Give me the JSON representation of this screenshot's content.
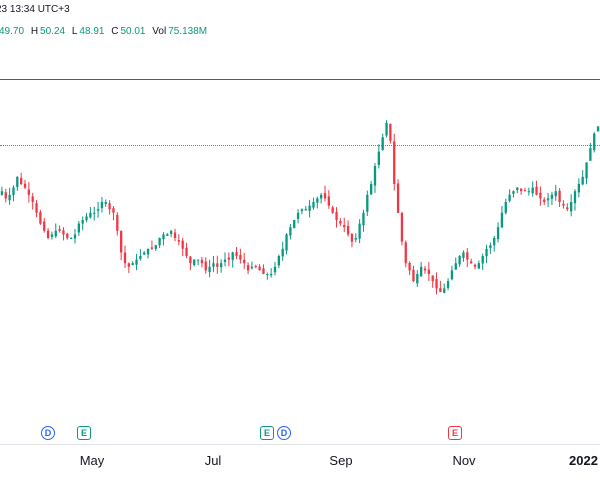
{
  "header": {
    "timestamp": "23 13:34 UTC+3"
  },
  "ohlc": {
    "open_label": "",
    "open_value": "49.70",
    "high_label": "H",
    "high_value": "50.24",
    "low_label": "L",
    "low_value": "48.91",
    "close_label": "C",
    "close_value": "50.01",
    "vol_label": "Vol",
    "vol_value": "75.138M"
  },
  "colors": {
    "up": "#089981",
    "down": "#f23645",
    "horizontal_line": "#9c27b0",
    "price_line": "#26a69a",
    "dividend": "#2962ff"
  },
  "events": [
    {
      "type": "dividend",
      "glyph": "D"
    },
    {
      "type": "earnings",
      "glyph": "E"
    },
    {
      "type": "earnings",
      "glyph": "E"
    },
    {
      "type": "dividend",
      "glyph": "D"
    },
    {
      "type": "earnings-red",
      "glyph": "E"
    }
  ],
  "time_axis": {
    "labels": [
      "May",
      "Jul",
      "Sep",
      "Nov",
      "2022"
    ]
  },
  "chart_data": {
    "type": "candlestick",
    "ylim": [
      0,
      100
    ],
    "closes": [
      58,
      56,
      57,
      59,
      62,
      60,
      59,
      57,
      55,
      52,
      49,
      47,
      45,
      46,
      47,
      47,
      46,
      45,
      45,
      46,
      49,
      50,
      51,
      52,
      52,
      53,
      55,
      55,
      53,
      52,
      47,
      41,
      38,
      37,
      38,
      39,
      40,
      41,
      42,
      42,
      43,
      45,
      46,
      46,
      47,
      45,
      44,
      42,
      40,
      38,
      39,
      39,
      38,
      36,
      37,
      38,
      37,
      38,
      39,
      39,
      41,
      40,
      39,
      38,
      36,
      37,
      37,
      36,
      35,
      35,
      35,
      37,
      40,
      42,
      46,
      48,
      50,
      52,
      53,
      53,
      54,
      55,
      56,
      57,
      56,
      54,
      52,
      50,
      49,
      48,
      46,
      44,
      45,
      49,
      52,
      57,
      60,
      65,
      69,
      73,
      77,
      72,
      60,
      52,
      44,
      38,
      36,
      33,
      35,
      37,
      36,
      35,
      33,
      31,
      30,
      31,
      33,
      36,
      38,
      40,
      41,
      39,
      38,
      37,
      38,
      40,
      42,
      43,
      45,
      48,
      52,
      55,
      57,
      58,
      59,
      58,
      58,
      58,
      59,
      57,
      56,
      55,
      56,
      57,
      58,
      55,
      54,
      53,
      55,
      58,
      60,
      62,
      66,
      70,
      74,
      76
    ]
  }
}
